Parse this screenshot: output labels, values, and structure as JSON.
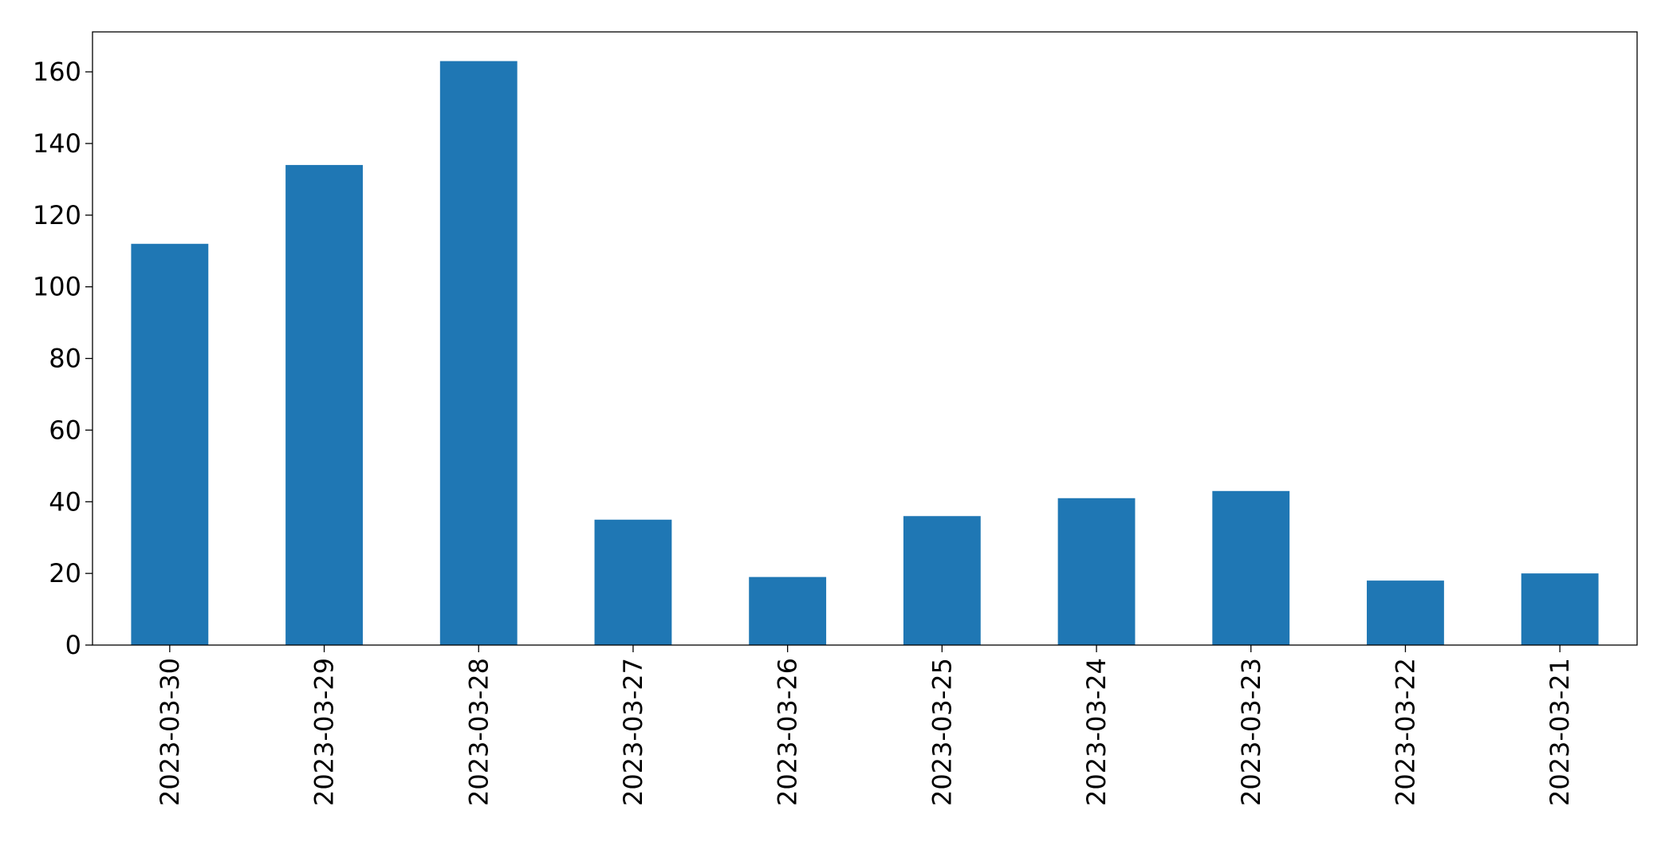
{
  "chart_data": {
    "type": "bar",
    "categories": [
      "2023-03-30",
      "2023-03-29",
      "2023-03-28",
      "2023-03-27",
      "2023-03-26",
      "2023-03-25",
      "2023-03-24",
      "2023-03-23",
      "2023-03-22",
      "2023-03-21"
    ],
    "values": [
      112,
      134,
      163,
      35,
      19,
      36,
      41,
      43,
      18,
      20
    ],
    "color": "#1f77b4",
    "ylim": [
      0,
      171.15
    ],
    "yticks": [
      0,
      20,
      40,
      60,
      80,
      100,
      120,
      140,
      160
    ],
    "grid": false
  }
}
